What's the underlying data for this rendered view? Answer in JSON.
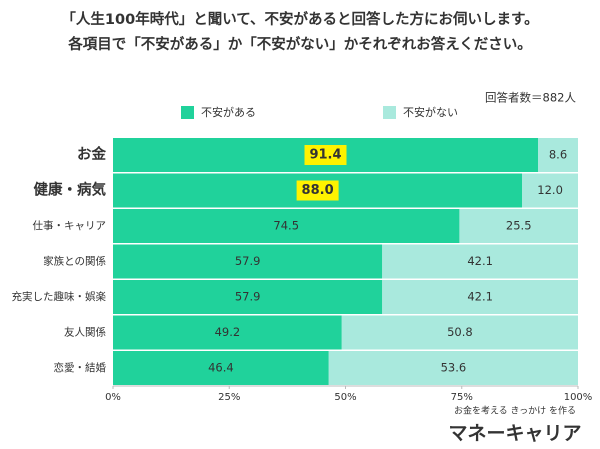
{
  "chart_data": {
    "type": "stacked-bar-horizontal",
    "title": [
      "「人生100年時代」と聞いて、不安があると回答した方にお伺いします。",
      "各項目で「不安がある」か「不安がない」かそれぞれお答えください。"
    ],
    "subtitle": "回答者数＝882人",
    "categories": [
      "お金",
      "健康・病気",
      "仕事・キャリア",
      "家族との関係",
      "充実した趣味・娯楽",
      "友人関係",
      "恋愛・結婚"
    ],
    "series": [
      {
        "name": "不安がある",
        "color": "#20d29b",
        "values": [
          91.4,
          88.0,
          74.5,
          57.9,
          57.9,
          49.2,
          46.4
        ],
        "value_labels": [
          "91.4",
          "88.0",
          "74.5",
          "57.9",
          "57.9",
          "49.2",
          "46.4"
        ]
      },
      {
        "name": "不安がない",
        "color": "#a9e9dd",
        "values": [
          8.6,
          12.0,
          25.5,
          42.1,
          42.1,
          50.8,
          53.6
        ],
        "value_labels": [
          "8.6",
          "12.0",
          "25.5",
          "42.1",
          "42.1",
          "50.8",
          "53.6"
        ]
      }
    ],
    "xlim": [
      0,
      100
    ],
    "xticks": [
      {
        "value": 0,
        "label": "0%"
      },
      {
        "value": 25,
        "label": "25%"
      },
      {
        "value": 50,
        "label": "50%"
      },
      {
        "value": 75,
        "label": "75%"
      },
      {
        "value": 100,
        "label": "100%"
      }
    ],
    "logo_tagline": "お金を考える きっかけ を作る",
    "logo_name": "マネーキャリア"
  }
}
